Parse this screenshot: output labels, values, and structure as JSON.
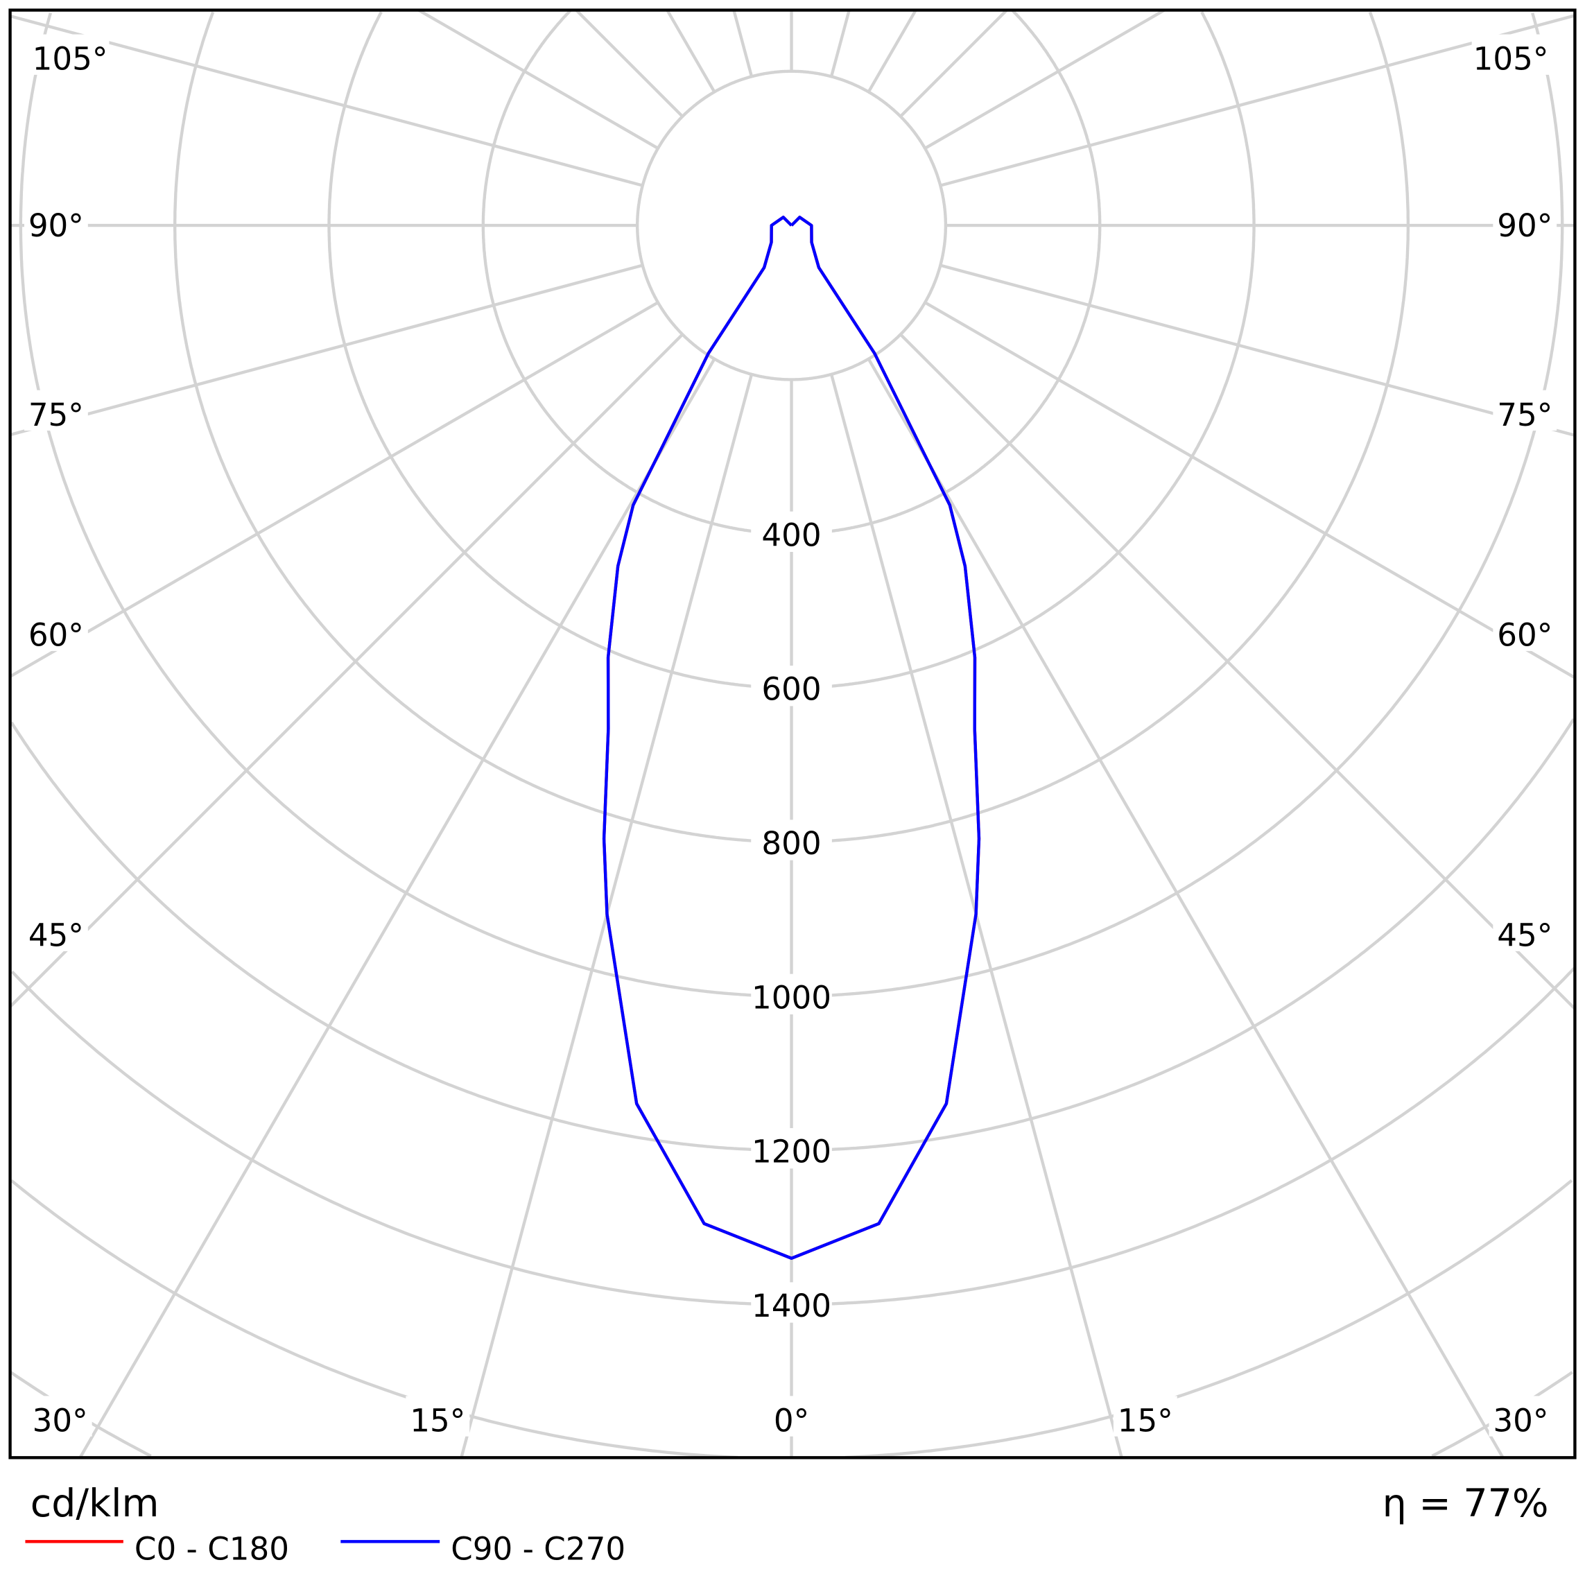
{
  "chart_data": {
    "type": "line",
    "subtype": "polar",
    "unit_label": "cd/klm",
    "efficiency_label": "η = 77%",
    "radial_axis": {
      "range": [
        0,
        2000
      ],
      "ring_step": 200,
      "tick_labels": [
        "400",
        "600",
        "800",
        "1000",
        "1200",
        "1400"
      ]
    },
    "angle_labels": {
      "left": [
        "105°",
        "90°",
        "75°",
        "60°",
        "45°",
        "30°"
      ],
      "bottom": [
        "15°",
        "0°",
        "15°"
      ],
      "right": [
        "105°",
        "90°",
        "75°",
        "60°",
        "45°",
        "30°"
      ]
    },
    "grid": true,
    "legend_position": "bottom-left",
    "series": [
      {
        "name": "C0 - C180",
        "color": "#ff0000",
        "points": [
          [
            0,
            1340
          ],
          [
            5,
            1300
          ],
          [
            10,
            1157
          ],
          [
            15,
            925
          ],
          [
            17,
            832
          ],
          [
            20,
            695
          ],
          [
            23,
            609
          ],
          [
            27,
            496
          ],
          [
            29.5,
            417
          ],
          [
            30.3,
            330
          ],
          [
            33,
            198
          ],
          [
            33,
            65
          ],
          [
            50,
            34
          ],
          [
            90,
            26
          ],
          [
            135,
            15
          ],
          [
            180,
            0
          ]
        ]
      },
      {
        "name": "C90 - C270",
        "color": "#0000ff",
        "points": [
          [
            0,
            1340
          ],
          [
            5,
            1300
          ],
          [
            10,
            1157
          ],
          [
            15,
            925
          ],
          [
            17,
            832
          ],
          [
            20,
            695
          ],
          [
            23,
            609
          ],
          [
            27,
            496
          ],
          [
            29.5,
            417
          ],
          [
            30.3,
            330
          ],
          [
            33,
            198
          ],
          [
            33,
            65
          ],
          [
            50,
            34
          ],
          [
            90,
            26
          ],
          [
            135,
            15
          ],
          [
            180,
            0
          ]
        ]
      }
    ]
  }
}
